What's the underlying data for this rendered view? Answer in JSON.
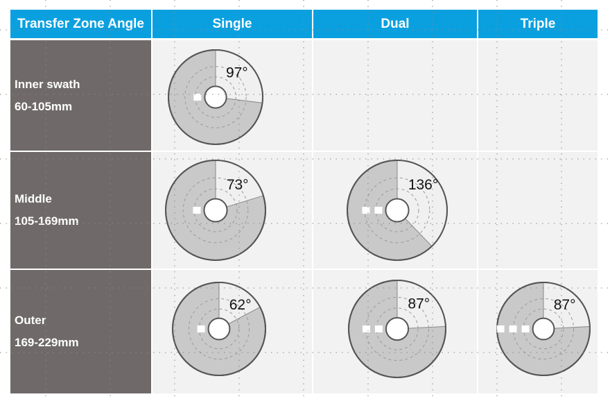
{
  "header": {
    "corner": "Transfer Zone Angle",
    "columns": [
      "Single",
      "Dual",
      "Triple"
    ]
  },
  "rows": [
    {
      "label_line1": "Inner swath",
      "label_line2": "60-105mm",
      "cells": [
        {
          "angle": 97,
          "angle_label": "97°",
          "markers": 1
        },
        null,
        null
      ]
    },
    {
      "label_line1": "Middle",
      "label_line2": "105-169mm",
      "cells": [
        {
          "angle": 73,
          "angle_label": "73°",
          "markers": 1
        },
        {
          "angle": 136,
          "angle_label": "136°",
          "markers": 2
        },
        null
      ]
    },
    {
      "label_line1": "Outer",
      "label_line2": "169-229mm",
      "cells": [
        {
          "angle": 62,
          "angle_label": "62°",
          "markers": 1
        },
        {
          "angle": 87,
          "angle_label": "87°",
          "markers": 2
        },
        {
          "angle": 87,
          "angle_label": "87°",
          "markers": 3
        }
      ]
    }
  ],
  "colors": {
    "header": "#0aa0df",
    "row_header": "#6f6a69",
    "cell": "#f2f2f2",
    "disk": "#c9c9c9",
    "zone": "#f0f0f0",
    "outline": "#555555"
  }
}
